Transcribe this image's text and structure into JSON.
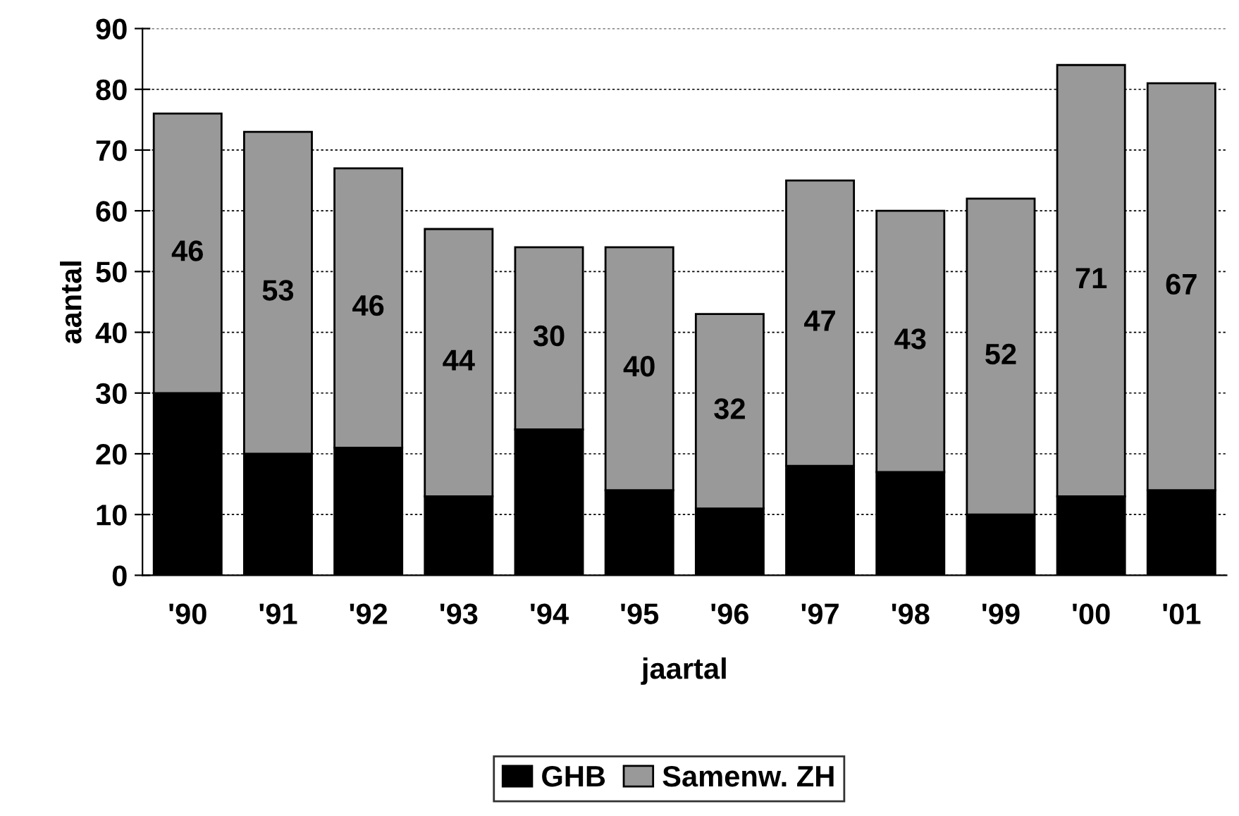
{
  "chart_data": {
    "type": "bar",
    "stacked": true,
    "xlabel": "jaartal",
    "ylabel": "aantal",
    "categories": [
      "'90",
      "'91",
      "'92",
      "'93",
      "'94",
      "'95",
      "'96",
      "'97",
      "'98",
      "'99",
      "'00",
      "'01"
    ],
    "series": [
      {
        "name": "GHB",
        "color": "#000000",
        "values": [
          30,
          20,
          21,
          13,
          24,
          14,
          11,
          18,
          17,
          10,
          13,
          14
        ]
      },
      {
        "name": "Samenw. ZH",
        "color": "#999999",
        "values": [
          46,
          53,
          46,
          44,
          30,
          40,
          32,
          47,
          43,
          52,
          71,
          67
        ],
        "value_labels": [
          "46",
          "53",
          "46",
          "44",
          "30",
          "40",
          "32",
          "47",
          "43",
          "52",
          "71",
          "67"
        ]
      }
    ],
    "ylim": [
      0,
      90
    ],
    "yticks": [
      0,
      10,
      20,
      30,
      40,
      50,
      60,
      70,
      80,
      90
    ],
    "grid": "y",
    "legend": "bottom"
  }
}
